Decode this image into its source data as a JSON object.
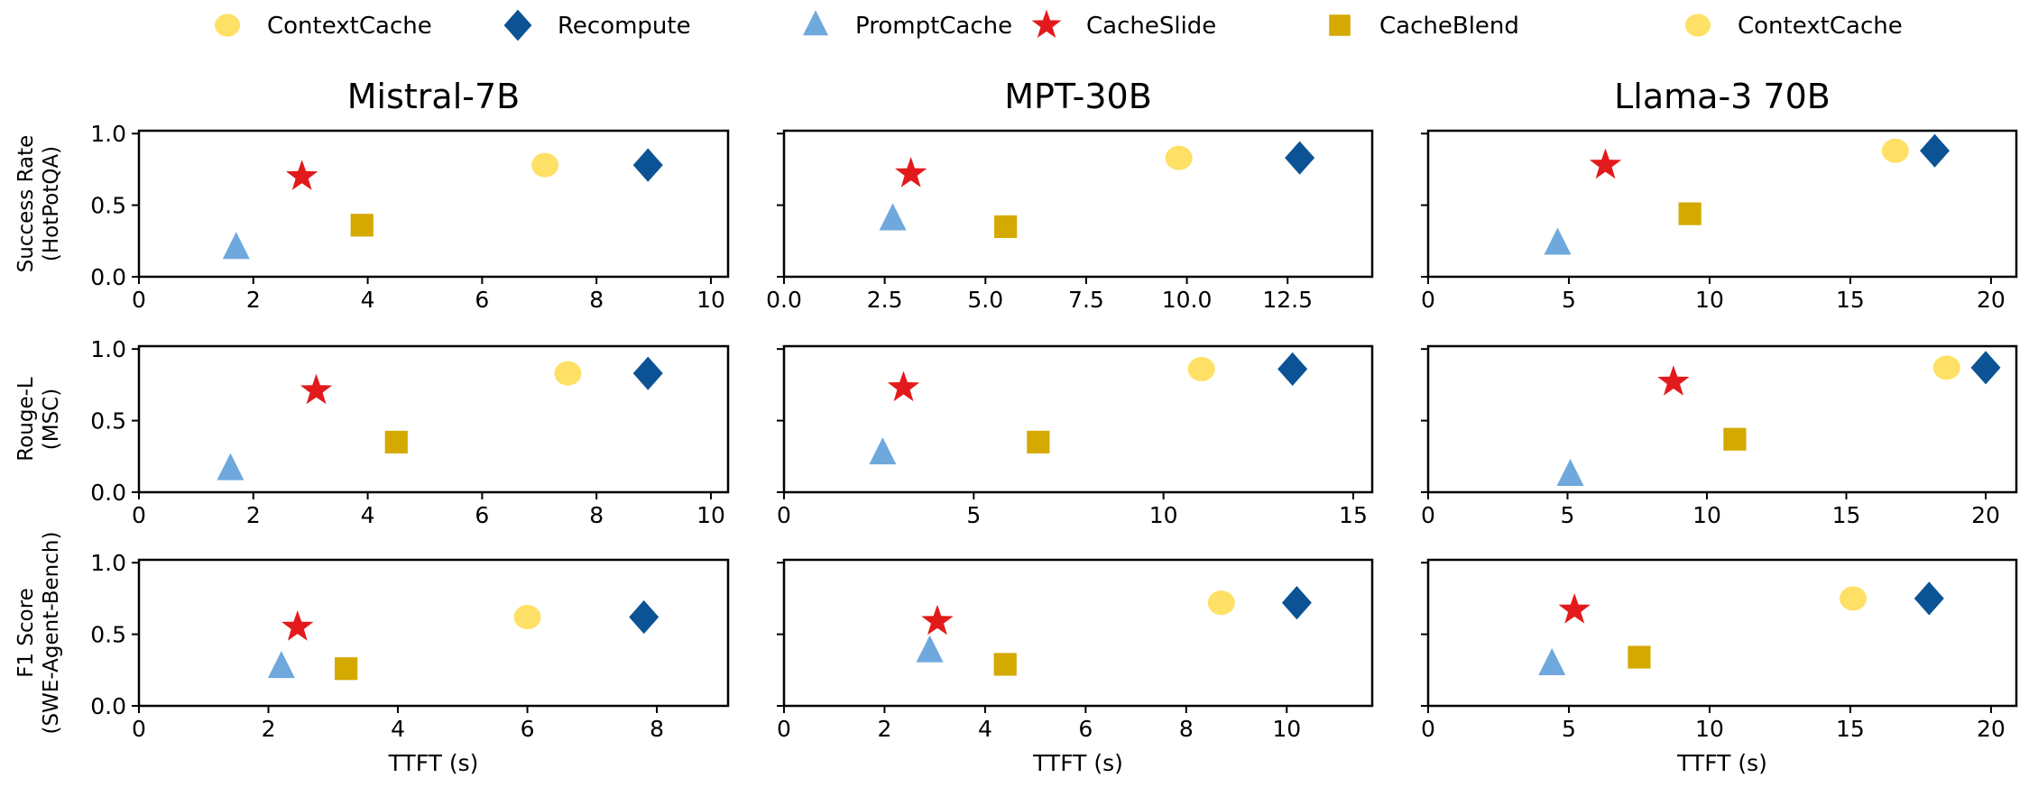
{
  "chart_data": {
    "type": "scatter",
    "grid": false,
    "legend_placement": "top-center",
    "legend": [
      {
        "name": "ContextCache",
        "marker": "circle",
        "color": "#FFE066"
      },
      {
        "name": "Recompute",
        "marker": "diamond",
        "color": "#0B5394"
      },
      {
        "name": "PromptCache",
        "marker": "triangle",
        "color": "#6FA8DC"
      },
      {
        "name": "CacheSlide",
        "marker": "star",
        "color": "#E31A1C"
      },
      {
        "name": "CacheBlend",
        "marker": "square",
        "color": "#D4A900"
      },
      {
        "name": "ContextCache",
        "marker": "circle",
        "color": "#FFE066"
      }
    ],
    "columns": [
      "Mistral-7B",
      "MPT-30B",
      "Llama-3 70B"
    ],
    "rows": [
      {
        "ylabel": [
          "Success Rate",
          "(HotPotQA)"
        ]
      },
      {
        "ylabel": [
          "Rouge-L",
          "(MSC)"
        ]
      },
      {
        "ylabel": [
          "F1 Score",
          "(SWE-Agent-Bench)"
        ]
      }
    ],
    "xlabel": "TTFT (s)",
    "ylim": [
      0,
      1.02
    ],
    "yticks": [
      0,
      0.5,
      1.0
    ],
    "ytick_labels": [
      "0.0",
      "0.5",
      "1.0"
    ],
    "panels": [
      {
        "row": 0,
        "col": 0,
        "xlim": [
          0,
          10.3
        ],
        "xticks": [
          0,
          2,
          4,
          6,
          8,
          10
        ],
        "xtick_labels": [
          "0",
          "2",
          "4",
          "6",
          "8",
          "10"
        ],
        "points": {
          "PromptCache": [
            1.7,
            0.2
          ],
          "CacheSlide": [
            2.85,
            0.7
          ],
          "CacheBlend": [
            3.9,
            0.36
          ],
          "ContextCache": [
            7.1,
            0.78
          ],
          "Recompute": [
            8.9,
            0.78
          ]
        }
      },
      {
        "row": 0,
        "col": 1,
        "xlim": [
          0,
          14.6
        ],
        "xticks": [
          0,
          2.5,
          5,
          7.5,
          10,
          12.5
        ],
        "xtick_labels": [
          "0.0",
          "2.5",
          "5.0",
          "7.5",
          "10.0",
          "12.5"
        ],
        "points": {
          "PromptCache": [
            2.7,
            0.4
          ],
          "CacheSlide": [
            3.15,
            0.72
          ],
          "CacheBlend": [
            5.5,
            0.35
          ],
          "ContextCache": [
            9.8,
            0.83
          ],
          "Recompute": [
            12.8,
            0.83
          ]
        }
      },
      {
        "row": 0,
        "col": 2,
        "xlim": [
          0,
          20.9
        ],
        "xticks": [
          0,
          5,
          10,
          15,
          20
        ],
        "xtick_labels": [
          "0",
          "5",
          "10",
          "15",
          "20"
        ],
        "points": {
          "PromptCache": [
            4.6,
            0.23
          ],
          "CacheSlide": [
            6.3,
            0.78
          ],
          "CacheBlend": [
            9.3,
            0.44
          ],
          "ContextCache": [
            16.6,
            0.88
          ],
          "Recompute": [
            18.0,
            0.88
          ]
        }
      },
      {
        "row": 1,
        "col": 0,
        "xlim": [
          0,
          10.3
        ],
        "xticks": [
          0,
          2,
          4,
          6,
          8,
          10
        ],
        "xtick_labels": [
          "0",
          "2",
          "4",
          "6",
          "8",
          "10"
        ],
        "points": {
          "PromptCache": [
            1.6,
            0.16
          ],
          "CacheSlide": [
            3.1,
            0.71
          ],
          "CacheBlend": [
            4.5,
            0.35
          ],
          "ContextCache": [
            7.5,
            0.83
          ],
          "Recompute": [
            8.9,
            0.83
          ]
        }
      },
      {
        "row": 1,
        "col": 1,
        "xlim": [
          0,
          15.5
        ],
        "xticks": [
          0,
          5,
          10,
          15
        ],
        "xtick_labels": [
          "0",
          "5",
          "10",
          "15"
        ],
        "points": {
          "PromptCache": [
            2.6,
            0.27
          ],
          "CacheSlide": [
            3.15,
            0.73
          ],
          "CacheBlend": [
            6.7,
            0.35
          ],
          "ContextCache": [
            11.0,
            0.86
          ],
          "Recompute": [
            13.4,
            0.86
          ]
        }
      },
      {
        "row": 1,
        "col": 2,
        "xlim": [
          0,
          21.1
        ],
        "xticks": [
          0,
          5,
          10,
          15,
          20
        ],
        "xtick_labels": [
          "0",
          "5",
          "10",
          "15",
          "20"
        ],
        "points": {
          "PromptCache": [
            5.1,
            0.12
          ],
          "CacheSlide": [
            8.8,
            0.77
          ],
          "CacheBlend": [
            11.0,
            0.37
          ],
          "ContextCache": [
            18.6,
            0.87
          ],
          "Recompute": [
            20.0,
            0.87
          ]
        }
      },
      {
        "row": 2,
        "col": 0,
        "xlim": [
          0,
          9.1
        ],
        "xticks": [
          0,
          2,
          4,
          6,
          8
        ],
        "xtick_labels": [
          "0",
          "2",
          "4",
          "6",
          "8"
        ],
        "points": {
          "PromptCache": [
            2.2,
            0.27
          ],
          "CacheSlide": [
            2.45,
            0.55
          ],
          "CacheBlend": [
            3.2,
            0.26
          ],
          "ContextCache": [
            6.0,
            0.62
          ],
          "Recompute": [
            7.8,
            0.62
          ]
        }
      },
      {
        "row": 2,
        "col": 1,
        "xlim": [
          0,
          11.7
        ],
        "xticks": [
          0,
          2,
          4,
          6,
          8,
          10
        ],
        "xtick_labels": [
          "0",
          "2",
          "4",
          "6",
          "8",
          "10"
        ],
        "points": {
          "PromptCache": [
            2.9,
            0.38
          ],
          "CacheSlide": [
            3.05,
            0.59
          ],
          "CacheBlend": [
            4.4,
            0.29
          ],
          "ContextCache": [
            8.7,
            0.72
          ],
          "Recompute": [
            10.2,
            0.72
          ]
        }
      },
      {
        "row": 2,
        "col": 2,
        "xlim": [
          0,
          20.9
        ],
        "xticks": [
          0,
          5,
          10,
          15,
          20
        ],
        "xtick_labels": [
          "0",
          "5",
          "10",
          "15",
          "20"
        ],
        "points": {
          "PromptCache": [
            4.4,
            0.29
          ],
          "CacheSlide": [
            5.2,
            0.67
          ],
          "CacheBlend": [
            7.5,
            0.34
          ],
          "ContextCache": [
            15.1,
            0.75
          ],
          "Recompute": [
            17.8,
            0.75
          ]
        }
      }
    ]
  }
}
